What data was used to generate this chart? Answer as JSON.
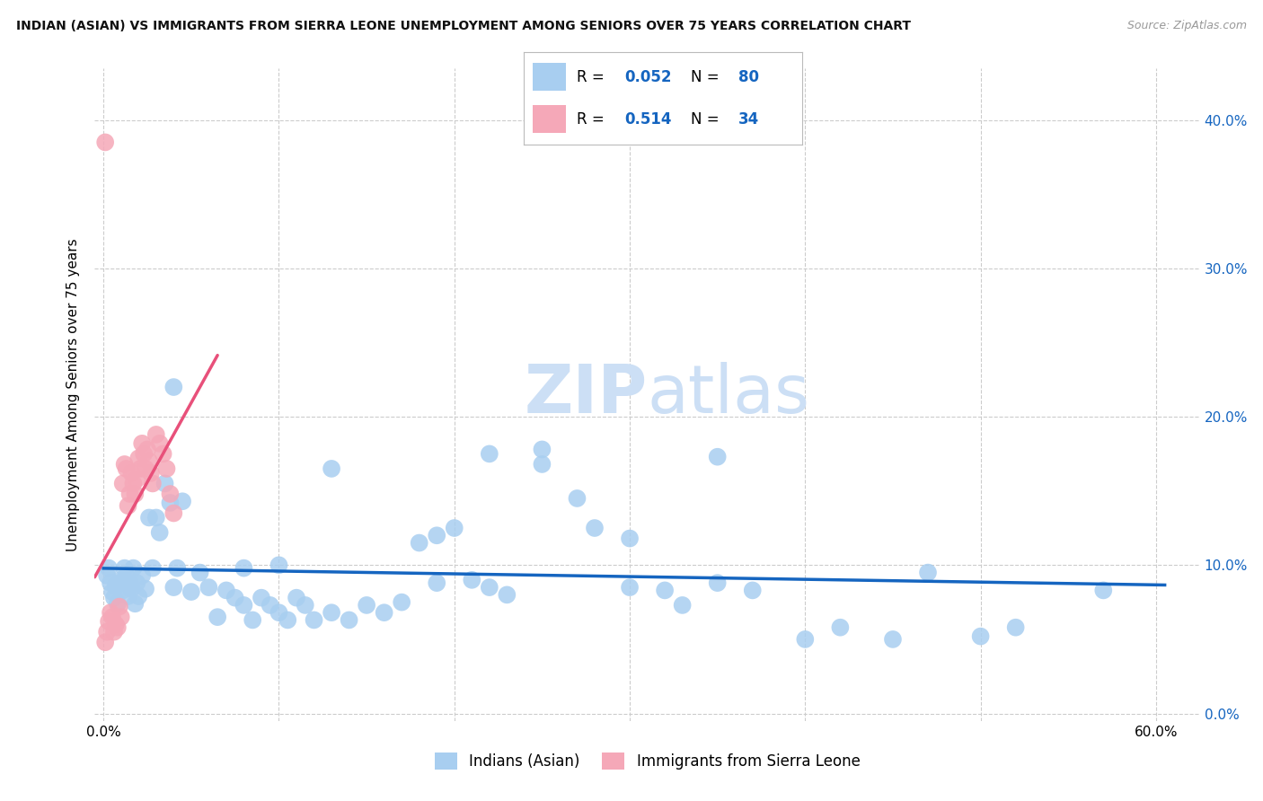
{
  "title": "INDIAN (ASIAN) VS IMMIGRANTS FROM SIERRA LEONE UNEMPLOYMENT AMONG SENIORS OVER 75 YEARS CORRELATION CHART",
  "source": "Source: ZipAtlas.com",
  "ylabel": "Unemployment Among Seniors over 75 years",
  "xlim": [
    -0.005,
    0.625
  ],
  "ylim": [
    -0.005,
    0.435
  ],
  "yticks": [
    0.0,
    0.1,
    0.2,
    0.3,
    0.4
  ],
  "ytick_labels_right": [
    "0.0%",
    "10.0%",
    "20.0%",
    "30.0%",
    "40.0%"
  ],
  "xticks": [
    0.0,
    0.1,
    0.2,
    0.3,
    0.4,
    0.5,
    0.6
  ],
  "xtick_labels": [
    "0.0%",
    "",
    "",
    "",
    "",
    "",
    "60.0%"
  ],
  "blue_R": 0.052,
  "blue_N": 80,
  "pink_R": 0.514,
  "pink_N": 34,
  "legend_label1": "Indians (Asian)",
  "legend_label2": "Immigrants from Sierra Leone",
  "color_blue": "#a8cef0",
  "color_blue_line": "#1565c0",
  "color_pink": "#f5a8b8",
  "color_pink_line": "#e8507a",
  "color_legend_text": "#1565c0",
  "color_watermark": "#ccdff5",
  "background_color": "#ffffff",
  "grid_color": "#cccccc",
  "blue_x": [
    0.002,
    0.003,
    0.004,
    0.005,
    0.006,
    0.007,
    0.008,
    0.009,
    0.01,
    0.011,
    0.012,
    0.013,
    0.014,
    0.015,
    0.016,
    0.017,
    0.018,
    0.019,
    0.02,
    0.022,
    0.024,
    0.026,
    0.028,
    0.03,
    0.032,
    0.035,
    0.038,
    0.04,
    0.042,
    0.045,
    0.05,
    0.055,
    0.06,
    0.065,
    0.07,
    0.075,
    0.08,
    0.085,
    0.09,
    0.095,
    0.1,
    0.105,
    0.11,
    0.115,
    0.12,
    0.13,
    0.14,
    0.15,
    0.16,
    0.17,
    0.18,
    0.19,
    0.2,
    0.21,
    0.22,
    0.23,
    0.25,
    0.27,
    0.28,
    0.3,
    0.32,
    0.33,
    0.35,
    0.37,
    0.4,
    0.42,
    0.45,
    0.47,
    0.5,
    0.52,
    0.25,
    0.3,
    0.35,
    0.19,
    0.13,
    0.08,
    0.57,
    0.04,
    0.1,
    0.22
  ],
  "blue_y": [
    0.093,
    0.098,
    0.088,
    0.082,
    0.078,
    0.086,
    0.074,
    0.088,
    0.09,
    0.083,
    0.098,
    0.093,
    0.079,
    0.088,
    0.084,
    0.098,
    0.074,
    0.088,
    0.079,
    0.093,
    0.084,
    0.132,
    0.098,
    0.132,
    0.122,
    0.155,
    0.142,
    0.085,
    0.098,
    0.143,
    0.082,
    0.095,
    0.085,
    0.065,
    0.083,
    0.078,
    0.073,
    0.063,
    0.078,
    0.073,
    0.068,
    0.063,
    0.078,
    0.073,
    0.063,
    0.068,
    0.063,
    0.073,
    0.068,
    0.075,
    0.115,
    0.12,
    0.125,
    0.09,
    0.085,
    0.08,
    0.168,
    0.145,
    0.125,
    0.085,
    0.083,
    0.073,
    0.088,
    0.083,
    0.05,
    0.058,
    0.05,
    0.095,
    0.052,
    0.058,
    0.178,
    0.118,
    0.173,
    0.088,
    0.165,
    0.098,
    0.083,
    0.22,
    0.1,
    0.175
  ],
  "pink_x": [
    0.001,
    0.002,
    0.003,
    0.004,
    0.005,
    0.006,
    0.007,
    0.008,
    0.009,
    0.01,
    0.011,
    0.012,
    0.013,
    0.014,
    0.015,
    0.016,
    0.017,
    0.018,
    0.019,
    0.02,
    0.021,
    0.022,
    0.023,
    0.024,
    0.025,
    0.026,
    0.027,
    0.028,
    0.03,
    0.032,
    0.034,
    0.036,
    0.038,
    0.04
  ],
  "pink_y": [
    0.048,
    0.055,
    0.062,
    0.068,
    0.065,
    0.055,
    0.06,
    0.058,
    0.072,
    0.065,
    0.155,
    0.168,
    0.165,
    0.14,
    0.148,
    0.162,
    0.155,
    0.148,
    0.158,
    0.172,
    0.165,
    0.182,
    0.175,
    0.165,
    0.178,
    0.17,
    0.162,
    0.155,
    0.188,
    0.182,
    0.175,
    0.165,
    0.148,
    0.135
  ],
  "pink_extra_x": [
    0.001
  ],
  "pink_extra_y": [
    0.385
  ]
}
